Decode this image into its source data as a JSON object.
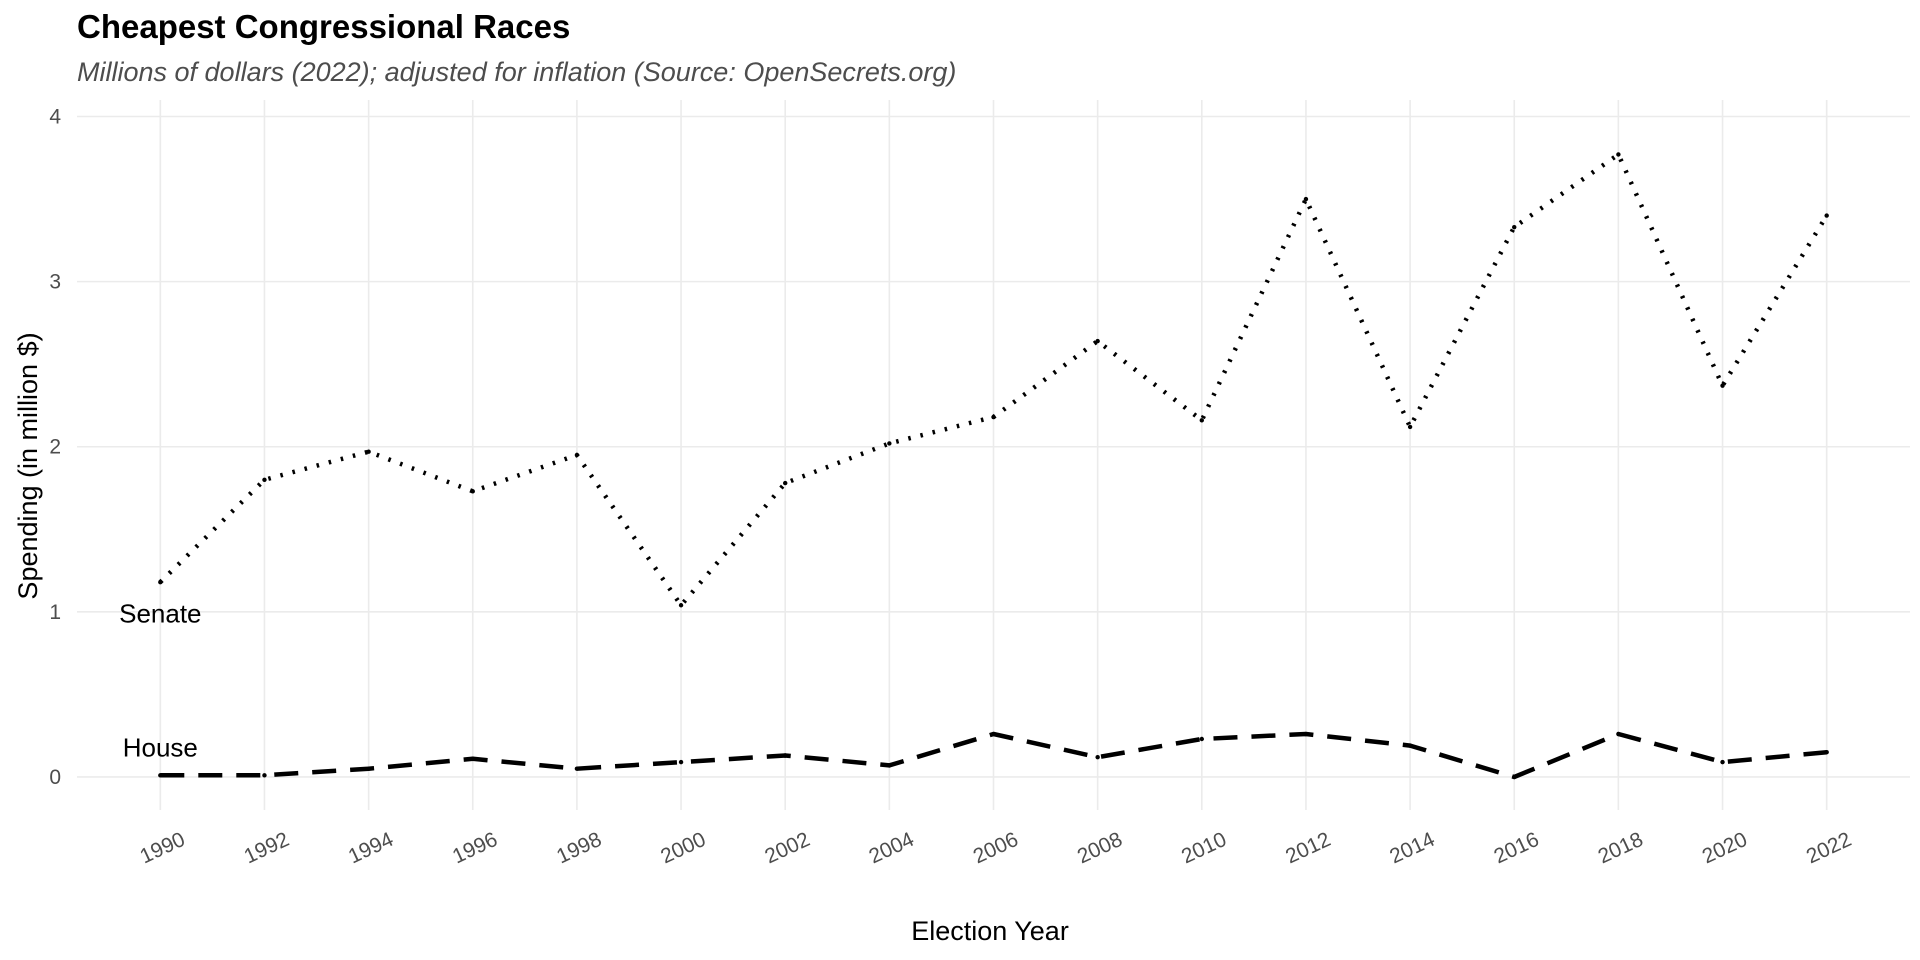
{
  "chart_data": {
    "type": "line",
    "title": "Cheapest Congressional Races",
    "subtitle": "Millions of dollars (2022); adjusted for inflation (Source: OpenSecrets.org)",
    "xlabel": "Election Year",
    "ylabel": "Spending (in million $)",
    "x": [
      1990,
      1992,
      1994,
      1996,
      1998,
      2000,
      2002,
      2004,
      2006,
      2008,
      2010,
      2012,
      2014,
      2016,
      2018,
      2020,
      2022
    ],
    "xticks": [
      "1990",
      "1992",
      "1994",
      "1996",
      "1998",
      "2000",
      "2002",
      "2004",
      "2006",
      "2008",
      "2010",
      "2012",
      "2014",
      "2016",
      "2018",
      "2020",
      "2022"
    ],
    "yticks": [
      "0",
      "1",
      "2",
      "3",
      "4"
    ],
    "xlim": [
      1988.4,
      2023.6
    ],
    "ylim": [
      -0.2,
      4.1
    ],
    "grid": true,
    "legend": "none",
    "series": [
      {
        "name": "Senate",
        "line_style": "dotted",
        "color": "#000000",
        "values": [
          1.18,
          1.8,
          1.97,
          1.73,
          1.95,
          1.04,
          1.78,
          2.02,
          2.18,
          2.64,
          2.16,
          3.5,
          2.12,
          3.33,
          3.77,
          2.37,
          3.4
        ]
      },
      {
        "name": "House",
        "line_style": "dashed",
        "color": "#000000",
        "values": [
          0.01,
          0.01,
          0.05,
          0.11,
          0.05,
          0.09,
          0.13,
          0.07,
          0.26,
          0.12,
          0.23,
          0.26,
          0.19,
          0.0,
          0.26,
          0.09,
          0.15
        ]
      }
    ],
    "series_labels": [
      {
        "text": "Senate",
        "x": 1990,
        "y": 0.99
      },
      {
        "text": "House",
        "x": 1990,
        "y": 0.18
      }
    ]
  }
}
